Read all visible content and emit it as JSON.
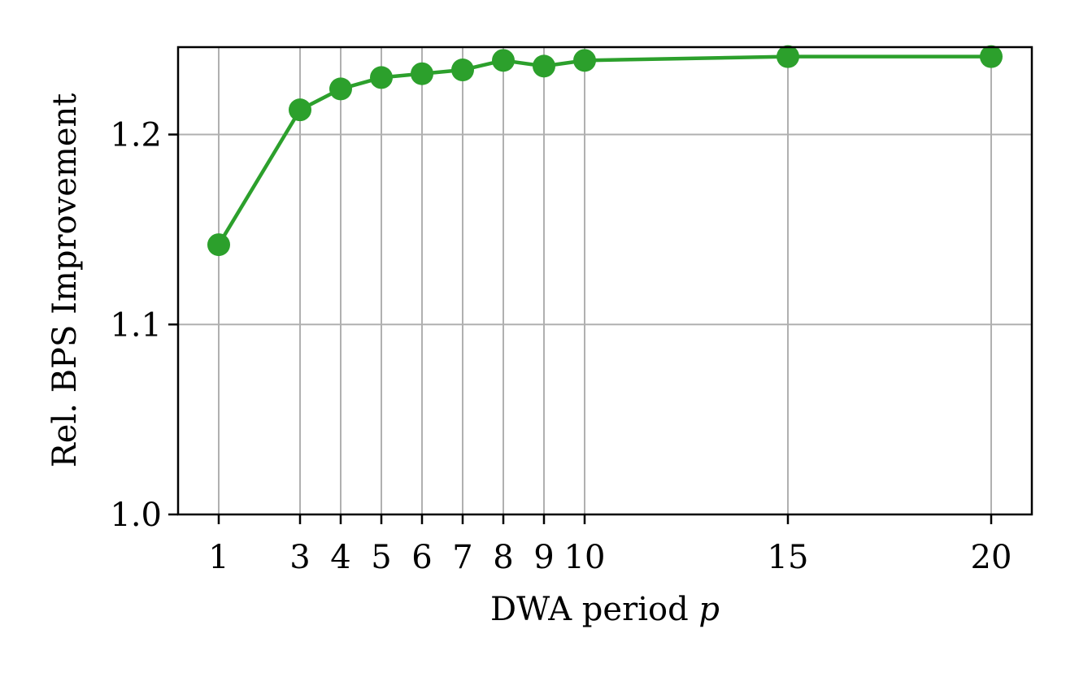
{
  "chart_data": {
    "type": "line",
    "title": "",
    "xlabel": "DWA period",
    "xlabel_variable": "p",
    "ylabel": "Rel. BPS Improvement",
    "x": [
      1,
      3,
      4,
      5,
      6,
      7,
      8,
      9,
      10,
      15,
      20
    ],
    "x_tick_labels": [
      "1",
      "3",
      "4",
      "5",
      "6",
      "7",
      "8",
      "9",
      "10",
      "15",
      "20"
    ],
    "y_ticks": [
      1.0,
      1.1,
      1.2
    ],
    "y_tick_labels": [
      "1.0",
      "1.1",
      "1.2"
    ],
    "xlim": [
      0.0,
      21.0
    ],
    "ylim": [
      1.0,
      1.246
    ],
    "grid": true,
    "legend": "none",
    "series": [
      {
        "color": "#2ca02c",
        "marker": "circle",
        "values": [
          1.142,
          1.213,
          1.224,
          1.23,
          1.232,
          1.234,
          1.239,
          1.236,
          1.239,
          1.241,
          1.241
        ]
      }
    ]
  }
}
